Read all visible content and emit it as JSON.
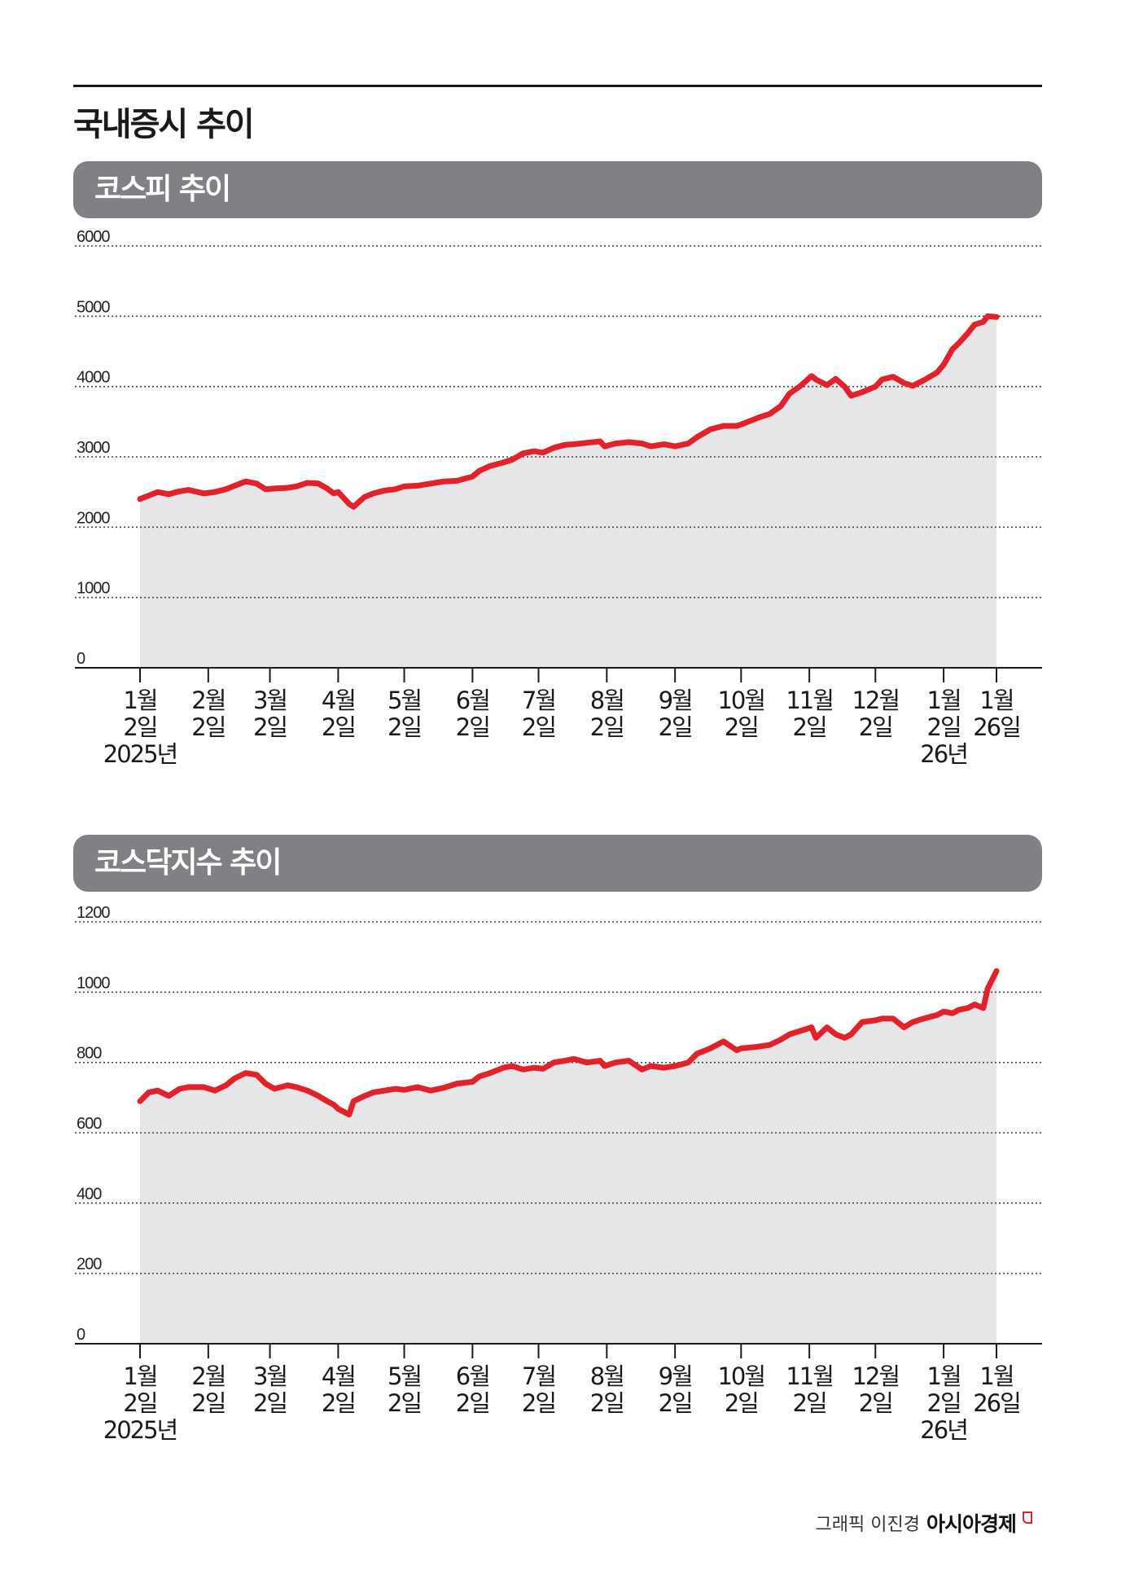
{
  "title": "국내증시 추이",
  "colors": {
    "line": "#e1222b",
    "area": "#e6e6e8",
    "banner": "#808184",
    "grid": "#444444"
  },
  "credit": {
    "text": "그래픽 이진경",
    "brand": "아시아경제"
  },
  "chart_data": [
    {
      "type": "area",
      "title": "코스피 추이",
      "ylim": [
        0,
        6000
      ],
      "yticks": [
        "6000",
        "5000",
        "4000",
        "3000",
        "2000",
        "1000",
        "0"
      ],
      "grid": true,
      "xticks": [
        {
          "lines": [
            "1월",
            "2일",
            "2025년"
          ],
          "date": "2025-01-02"
        },
        {
          "lines": [
            "2월",
            "2일"
          ],
          "date": "2025-02-02"
        },
        {
          "lines": [
            "3월",
            "2일"
          ],
          "date": "2025-03-02"
        },
        {
          "lines": [
            "4월",
            "2일"
          ],
          "date": "2025-04-02"
        },
        {
          "lines": [
            "5월",
            "2일"
          ],
          "date": "2025-05-02"
        },
        {
          "lines": [
            "6월",
            "2일"
          ],
          "date": "2025-06-02"
        },
        {
          "lines": [
            "7월",
            "2일"
          ],
          "date": "2025-07-02"
        },
        {
          "lines": [
            "8월",
            "2일"
          ],
          "date": "2025-08-02"
        },
        {
          "lines": [
            "9월",
            "2일"
          ],
          "date": "2025-09-02"
        },
        {
          "lines": [
            "10월",
            "2일"
          ],
          "date": "2025-10-02"
        },
        {
          "lines": [
            "11월",
            "2일"
          ],
          "date": "2025-11-02"
        },
        {
          "lines": [
            "12월",
            "2일"
          ],
          "date": "2025-12-02"
        },
        {
          "lines": [
            "1월",
            "2일",
            "26년"
          ],
          "date": "2026-01-02"
        },
        {
          "lines": [
            "1월",
            "26일"
          ],
          "date": "2026-01-26"
        }
      ],
      "series": [
        {
          "x": [
            "2025-01-02",
            "2025-01-06",
            "2025-01-10",
            "2025-01-15",
            "2025-01-20",
            "2025-01-24",
            "2025-01-31",
            "2025-02-05",
            "2025-02-10",
            "2025-02-14",
            "2025-02-19",
            "2025-02-24",
            "2025-02-28",
            "2025-03-04",
            "2025-03-10",
            "2025-03-14",
            "2025-03-19",
            "2025-03-24",
            "2025-03-28",
            "2025-03-31",
            "2025-04-02",
            "2025-04-07",
            "2025-04-09",
            "2025-04-14",
            "2025-04-18",
            "2025-04-23",
            "2025-04-28",
            "2025-05-02",
            "2025-05-08",
            "2025-05-14",
            "2025-05-20",
            "2025-05-26",
            "2025-06-02",
            "2025-06-05",
            "2025-06-10",
            "2025-06-16",
            "2025-06-20",
            "2025-06-25",
            "2025-06-30",
            "2025-07-04",
            "2025-07-09",
            "2025-07-14",
            "2025-07-18",
            "2025-07-24",
            "2025-07-30",
            "2025-08-01",
            "2025-08-06",
            "2025-08-12",
            "2025-08-18",
            "2025-08-22",
            "2025-08-28",
            "2025-09-02",
            "2025-09-08",
            "2025-09-12",
            "2025-09-18",
            "2025-09-24",
            "2025-09-30",
            "2025-10-02",
            "2025-10-10",
            "2025-10-15",
            "2025-10-20",
            "2025-10-24",
            "2025-10-29",
            "2025-11-03",
            "2025-11-05",
            "2025-11-10",
            "2025-11-14",
            "2025-11-18",
            "2025-11-21",
            "2025-11-26",
            "2025-12-02",
            "2025-12-05",
            "2025-12-10",
            "2025-12-15",
            "2025-12-19",
            "2025-12-24",
            "2025-12-30",
            "2026-01-02",
            "2026-01-06",
            "2026-01-09",
            "2026-01-13",
            "2026-01-16",
            "2026-01-20",
            "2026-01-22",
            "2026-01-26"
          ],
          "y": [
            2400,
            2450,
            2500,
            2470,
            2510,
            2530,
            2480,
            2500,
            2540,
            2590,
            2650,
            2620,
            2540,
            2550,
            2560,
            2580,
            2630,
            2620,
            2550,
            2480,
            2500,
            2330,
            2290,
            2430,
            2480,
            2520,
            2540,
            2580,
            2590,
            2620,
            2650,
            2660,
            2720,
            2800,
            2870,
            2920,
            2960,
            3050,
            3080,
            3060,
            3130,
            3170,
            3180,
            3200,
            3220,
            3150,
            3190,
            3210,
            3190,
            3150,
            3180,
            3150,
            3190,
            3280,
            3390,
            3440,
            3440,
            3460,
            3560,
            3610,
            3720,
            3900,
            4010,
            4150,
            4100,
            4020,
            4110,
            4000,
            3870,
            3920,
            4000,
            4100,
            4140,
            4050,
            4010,
            4090,
            4200,
            4310,
            4530,
            4620,
            4760,
            4880,
            4920,
            5000,
            4990
          ]
        }
      ]
    },
    {
      "type": "area",
      "title": "코스닥지수 추이",
      "ylim": [
        0,
        1200
      ],
      "yticks": [
        "1200",
        "1000",
        "800",
        "600",
        "400",
        "200",
        "0"
      ],
      "grid": true,
      "xticks": [
        {
          "lines": [
            "1월",
            "2일",
            "2025년"
          ],
          "date": "2025-01-02"
        },
        {
          "lines": [
            "2월",
            "2일"
          ],
          "date": "2025-02-02"
        },
        {
          "lines": [
            "3월",
            "2일"
          ],
          "date": "2025-03-02"
        },
        {
          "lines": [
            "4월",
            "2일"
          ],
          "date": "2025-04-02"
        },
        {
          "lines": [
            "5월",
            "2일"
          ],
          "date": "2025-05-02"
        },
        {
          "lines": [
            "6월",
            "2일"
          ],
          "date": "2025-06-02"
        },
        {
          "lines": [
            "7월",
            "2일"
          ],
          "date": "2025-07-02"
        },
        {
          "lines": [
            "8월",
            "2일"
          ],
          "date": "2025-08-02"
        },
        {
          "lines": [
            "9월",
            "2일"
          ],
          "date": "2025-09-02"
        },
        {
          "lines": [
            "10월",
            "2일"
          ],
          "date": "2025-10-02"
        },
        {
          "lines": [
            "11월",
            "2일"
          ],
          "date": "2025-11-02"
        },
        {
          "lines": [
            "12월",
            "2일"
          ],
          "date": "2025-12-02"
        },
        {
          "lines": [
            "1월",
            "2일",
            "26년"
          ],
          "date": "2026-01-02"
        },
        {
          "lines": [
            "1월",
            "26일"
          ],
          "date": "2026-01-26"
        }
      ],
      "series": [
        {
          "x": [
            "2025-01-02",
            "2025-01-06",
            "2025-01-10",
            "2025-01-15",
            "2025-01-20",
            "2025-01-24",
            "2025-01-31",
            "2025-02-05",
            "2025-02-10",
            "2025-02-14",
            "2025-02-19",
            "2025-02-24",
            "2025-02-28",
            "2025-03-04",
            "2025-03-10",
            "2025-03-14",
            "2025-03-19",
            "2025-03-24",
            "2025-03-28",
            "2025-03-31",
            "2025-04-02",
            "2025-04-07",
            "2025-04-09",
            "2025-04-14",
            "2025-04-18",
            "2025-04-23",
            "2025-04-28",
            "2025-05-02",
            "2025-05-08",
            "2025-05-14",
            "2025-05-20",
            "2025-05-26",
            "2025-06-02",
            "2025-06-05",
            "2025-06-10",
            "2025-06-16",
            "2025-06-20",
            "2025-06-25",
            "2025-06-30",
            "2025-07-04",
            "2025-07-09",
            "2025-07-14",
            "2025-07-18",
            "2025-07-24",
            "2025-07-30",
            "2025-08-01",
            "2025-08-06",
            "2025-08-12",
            "2025-08-18",
            "2025-08-22",
            "2025-08-28",
            "2025-09-02",
            "2025-09-08",
            "2025-09-12",
            "2025-09-18",
            "2025-09-24",
            "2025-09-30",
            "2025-10-02",
            "2025-10-10",
            "2025-10-15",
            "2025-10-20",
            "2025-10-24",
            "2025-10-29",
            "2025-11-03",
            "2025-11-05",
            "2025-11-10",
            "2025-11-14",
            "2025-11-18",
            "2025-11-21",
            "2025-11-26",
            "2025-12-02",
            "2025-12-05",
            "2025-12-10",
            "2025-12-15",
            "2025-12-19",
            "2025-12-24",
            "2025-12-30",
            "2026-01-02",
            "2026-01-06",
            "2026-01-09",
            "2026-01-13",
            "2026-01-16",
            "2026-01-20",
            "2026-01-22",
            "2026-01-26"
          ],
          "y": [
            690,
            715,
            720,
            705,
            725,
            730,
            730,
            720,
            735,
            755,
            770,
            765,
            740,
            725,
            735,
            730,
            720,
            705,
            690,
            680,
            668,
            652,
            690,
            705,
            715,
            720,
            725,
            722,
            730,
            720,
            728,
            740,
            745,
            760,
            770,
            785,
            790,
            780,
            785,
            782,
            800,
            805,
            810,
            800,
            805,
            790,
            800,
            805,
            780,
            790,
            785,
            790,
            800,
            825,
            840,
            860,
            835,
            840,
            845,
            850,
            865,
            880,
            890,
            900,
            870,
            900,
            880,
            870,
            880,
            915,
            920,
            925,
            925,
            900,
            915,
            925,
            935,
            945,
            940,
            950,
            955,
            965,
            955,
            1010,
            1060
          ]
        }
      ]
    }
  ]
}
